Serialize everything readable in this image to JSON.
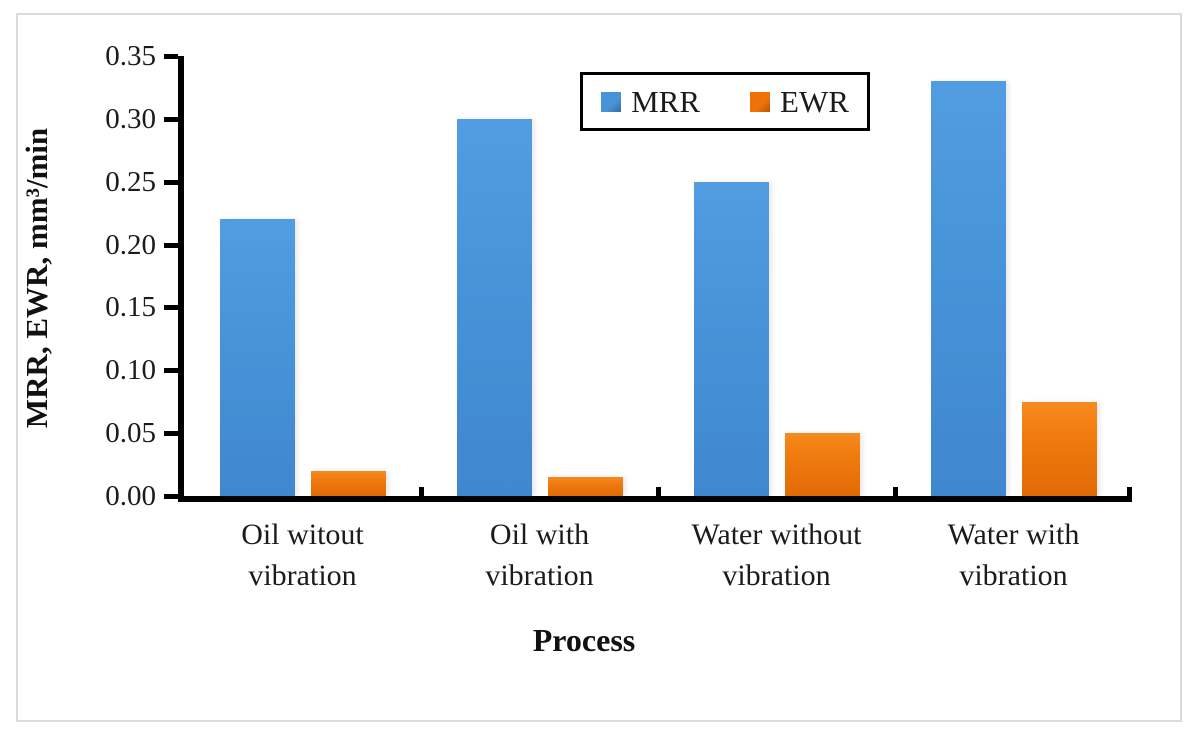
{
  "chart_data": {
    "type": "bar",
    "title": "",
    "categories": [
      "Oil witout vibration",
      "Oil with vibration",
      "Water without vibration",
      "Water with vibration"
    ],
    "category_lines": [
      [
        "Oil witout",
        "vibration"
      ],
      [
        "Oil with",
        "vibration"
      ],
      [
        "Water without",
        "vibration"
      ],
      [
        "Water with",
        "vibration"
      ]
    ],
    "series": [
      {
        "name": "MRR",
        "color": "#4793d8",
        "values": [
          0.22,
          0.3,
          0.25,
          0.33
        ]
      },
      {
        "name": "EWR",
        "color": "#ee7208",
        "values": [
          0.02,
          0.015,
          0.05,
          0.075
        ]
      }
    ],
    "xlabel": "Process",
    "ylabel": "MRR, EWR, mm³/min",
    "ylim": [
      0,
      0.35
    ],
    "y_tick_step": 0.05,
    "y_ticks": [
      "0.35",
      "0.30",
      "0.25",
      "0.20",
      "0.15",
      "0.10",
      "0.05",
      "0.00"
    ],
    "legend_position": "top-center",
    "grid": false,
    "axis_color": "#000000",
    "frame_color": "#d9dcdf"
  }
}
